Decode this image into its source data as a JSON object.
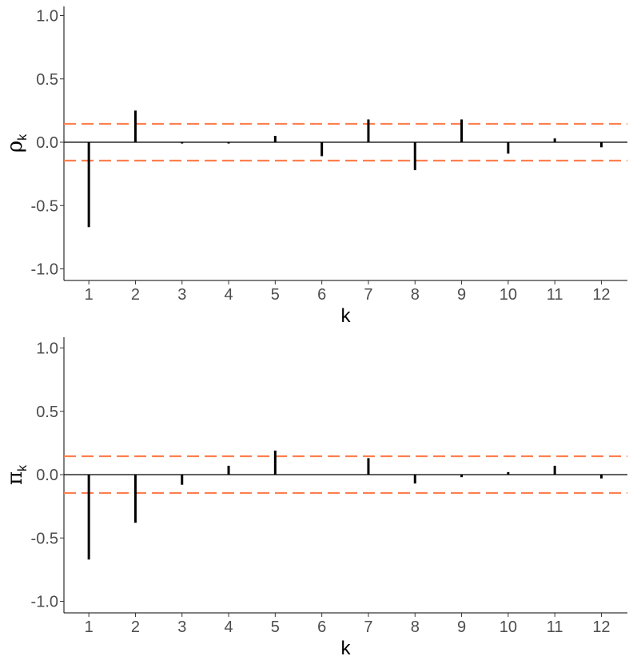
{
  "chart_data": [
    {
      "type": "bar",
      "variant": "acf-spikes",
      "ylabel": "ρ",
      "ylabel_subscript": "k",
      "xlabel": "k",
      "ylim": [
        -1.0,
        1.0
      ],
      "yticks": [
        -1.0,
        -0.5,
        0.0,
        0.5,
        1.0
      ],
      "ytick_labels": [
        "-1.0",
        "-0.5",
        "0.0",
        "0.5",
        "1.0"
      ],
      "categories": [
        "1",
        "2",
        "3",
        "4",
        "5",
        "6",
        "7",
        "8",
        "9",
        "10",
        "11",
        "12"
      ],
      "values": [
        -0.67,
        0.25,
        -0.01,
        -0.01,
        0.05,
        -0.11,
        0.18,
        -0.22,
        0.18,
        -0.09,
        0.03,
        -0.04
      ],
      "confidence_bounds": [
        0.145,
        -0.145
      ],
      "bound_color": "#ff7f50",
      "bar_color": "#000000",
      "grid": false
    },
    {
      "type": "bar",
      "variant": "pacf-spikes",
      "ylabel": "π",
      "ylabel_subscript": "k",
      "xlabel": "k",
      "ylim": [
        -1.0,
        1.0
      ],
      "yticks": [
        -1.0,
        -0.5,
        0.0,
        0.5,
        1.0
      ],
      "ytick_labels": [
        "-1.0",
        "-0.5",
        "0.0",
        "0.5",
        "1.0"
      ],
      "categories": [
        "1",
        "2",
        "3",
        "4",
        "5",
        "6",
        "7",
        "8",
        "9",
        "10",
        "11",
        "12"
      ],
      "values": [
        -0.67,
        -0.38,
        -0.08,
        0.07,
        0.19,
        0.0,
        0.13,
        -0.07,
        -0.02,
        0.02,
        0.07,
        -0.03
      ],
      "confidence_bounds": [
        0.145,
        -0.145
      ],
      "bound_color": "#ff7f50",
      "bar_color": "#000000",
      "grid": false
    }
  ]
}
